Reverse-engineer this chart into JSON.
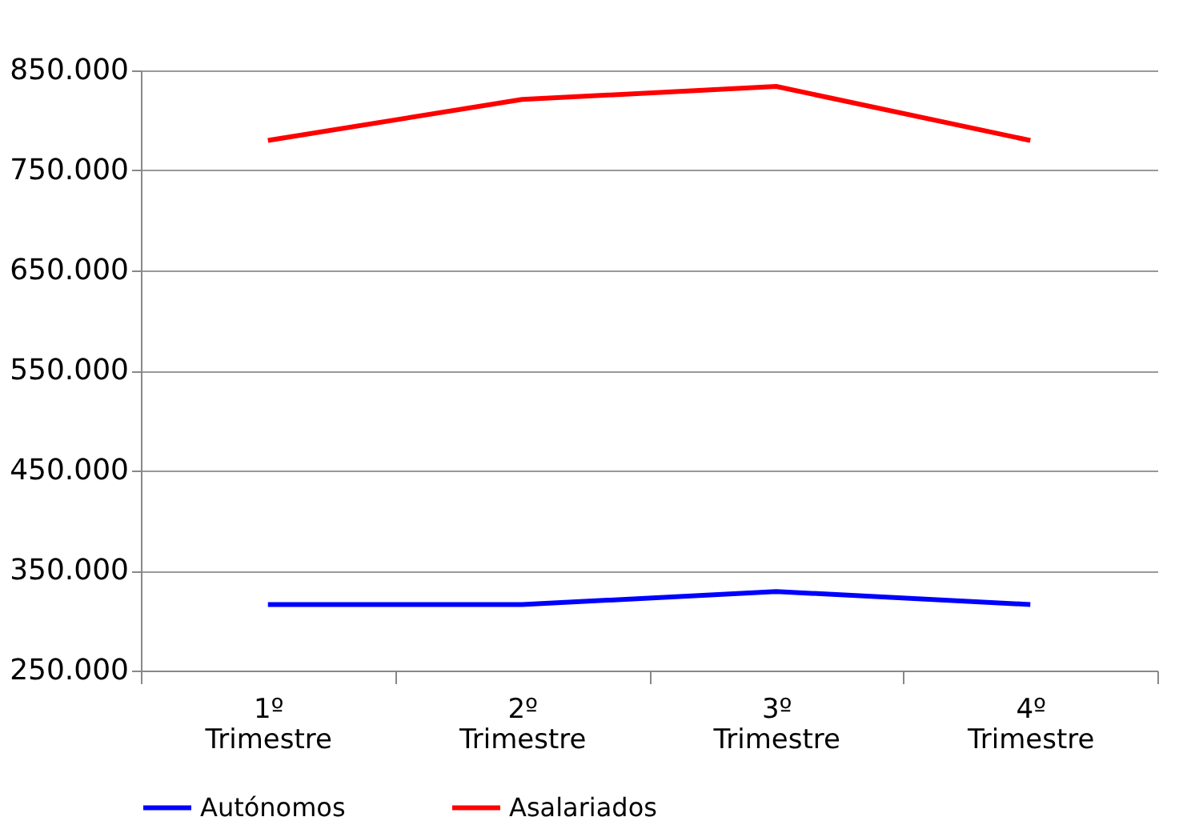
{
  "chart_data": {
    "type": "line",
    "categories": [
      "1º\nTrimestre",
      "2º\nTrimestre",
      "3º\nTrimestre",
      "4º\nTrimestre"
    ],
    "series": [
      {
        "name": "Autónomos",
        "color": "#0000ff",
        "values": [
          316000,
          316000,
          329000,
          316000
        ]
      },
      {
        "name": "Asalariados",
        "color": "#ff0000",
        "values": [
          780000,
          821000,
          834000,
          780000
        ]
      }
    ],
    "ylim": [
      250000,
      850000
    ],
    "yticks": [
      {
        "value": 250000,
        "label": "250.000"
      },
      {
        "value": 350000,
        "label": "350.000"
      },
      {
        "value": 450000,
        "label": "450.000"
      },
      {
        "value": 550000,
        "label": "550.000"
      },
      {
        "value": 650000,
        "label": "650.000"
      },
      {
        "value": 750000,
        "label": "750.000"
      },
      {
        "value": 850000,
        "label": "850.000"
      }
    ],
    "grid": "y",
    "legend": "bottom",
    "marker": "none",
    "line_style": "solid"
  }
}
